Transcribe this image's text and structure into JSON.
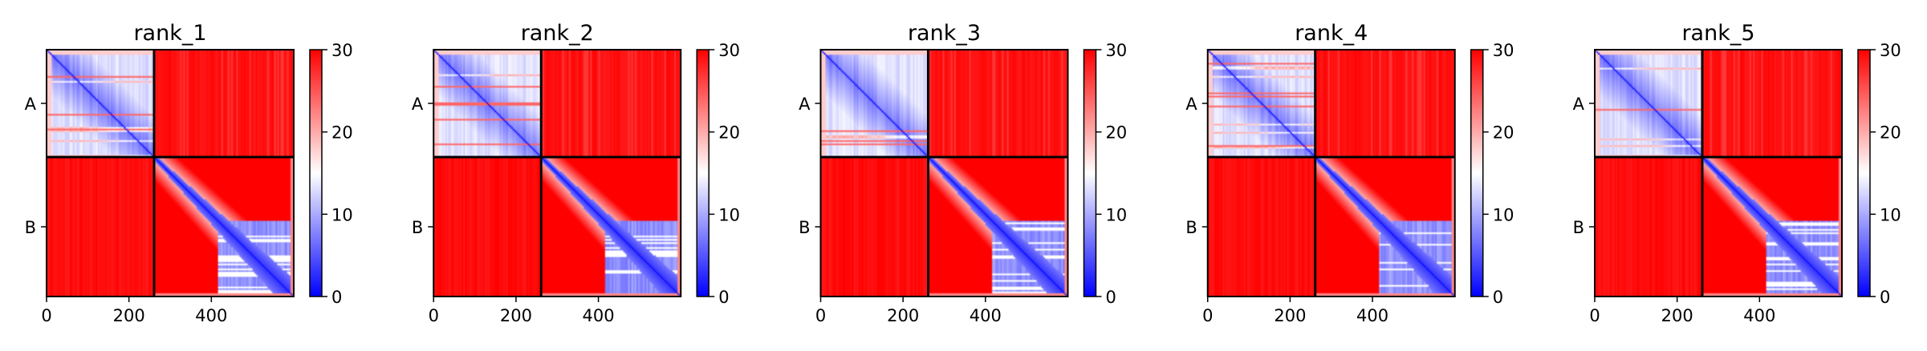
{
  "chart_data": [
    {
      "type": "heatmap",
      "title": "rank_1",
      "xlabel": "",
      "ylabel": "",
      "xlim": [
        0,
        600
      ],
      "x_ticks": [
        0,
        200,
        400
      ],
      "x_tick_labels": [
        "0",
        "200",
        "400"
      ],
      "y_categories": [
        "A",
        "B"
      ],
      "chain_boundary": 261,
      "matrix_size": 600,
      "colorbar": {
        "min": 0,
        "max": 30,
        "ticks": [
          0,
          10,
          20,
          30
        ],
        "tick_labels": [
          "0",
          "10",
          "20",
          "30"
        ],
        "colors": [
          "#0000ff",
          "#ffffff",
          "#ff0000"
        ]
      },
      "noise_seed": 11
    },
    {
      "type": "heatmap",
      "title": "rank_2",
      "xlabel": "",
      "ylabel": "",
      "xlim": [
        0,
        600
      ],
      "x_ticks": [
        0,
        200,
        400
      ],
      "x_tick_labels": [
        "0",
        "200",
        "400"
      ],
      "y_categories": [
        "A",
        "B"
      ],
      "chain_boundary": 261,
      "matrix_size": 600,
      "colorbar": {
        "min": 0,
        "max": 30,
        "ticks": [
          0,
          10,
          20,
          30
        ],
        "tick_labels": [
          "0",
          "10",
          "20",
          "30"
        ],
        "colors": [
          "#0000ff",
          "#ffffff",
          "#ff0000"
        ]
      },
      "noise_seed": 23
    },
    {
      "type": "heatmap",
      "title": "rank_3",
      "xlabel": "",
      "ylabel": "",
      "xlim": [
        0,
        600
      ],
      "x_ticks": [
        0,
        200,
        400
      ],
      "x_tick_labels": [
        "0",
        "200",
        "400"
      ],
      "y_categories": [
        "A",
        "B"
      ],
      "chain_boundary": 261,
      "matrix_size": 600,
      "colorbar": {
        "min": 0,
        "max": 30,
        "ticks": [
          0,
          10,
          20,
          30
        ],
        "tick_labels": [
          "0",
          "10",
          "20",
          "30"
        ],
        "colors": [
          "#0000ff",
          "#ffffff",
          "#ff0000"
        ]
      },
      "noise_seed": 37
    },
    {
      "type": "heatmap",
      "title": "rank_4",
      "xlabel": "",
      "ylabel": "",
      "xlim": [
        0,
        600
      ],
      "x_ticks": [
        0,
        200,
        400
      ],
      "x_tick_labels": [
        "0",
        "200",
        "400"
      ],
      "y_categories": [
        "A",
        "B"
      ],
      "chain_boundary": 261,
      "matrix_size": 600,
      "colorbar": {
        "min": 0,
        "max": 30,
        "ticks": [
          0,
          10,
          20,
          30
        ],
        "tick_labels": [
          "0",
          "10",
          "20",
          "30"
        ],
        "colors": [
          "#0000ff",
          "#ffffff",
          "#ff0000"
        ]
      },
      "noise_seed": 41
    },
    {
      "type": "heatmap",
      "title": "rank_5",
      "xlabel": "",
      "ylabel": "",
      "xlim": [
        0,
        600
      ],
      "x_ticks": [
        0,
        200,
        400
      ],
      "x_tick_labels": [
        "0",
        "200",
        "400"
      ],
      "y_categories": [
        "A",
        "B"
      ],
      "chain_boundary": 261,
      "matrix_size": 600,
      "colorbar": {
        "min": 0,
        "max": 30,
        "ticks": [
          0,
          10,
          20,
          30
        ],
        "tick_labels": [
          "0",
          "10",
          "20",
          "30"
        ],
        "colors": [
          "#0000ff",
          "#ffffff",
          "#ff0000"
        ]
      },
      "noise_seed": 53
    }
  ]
}
